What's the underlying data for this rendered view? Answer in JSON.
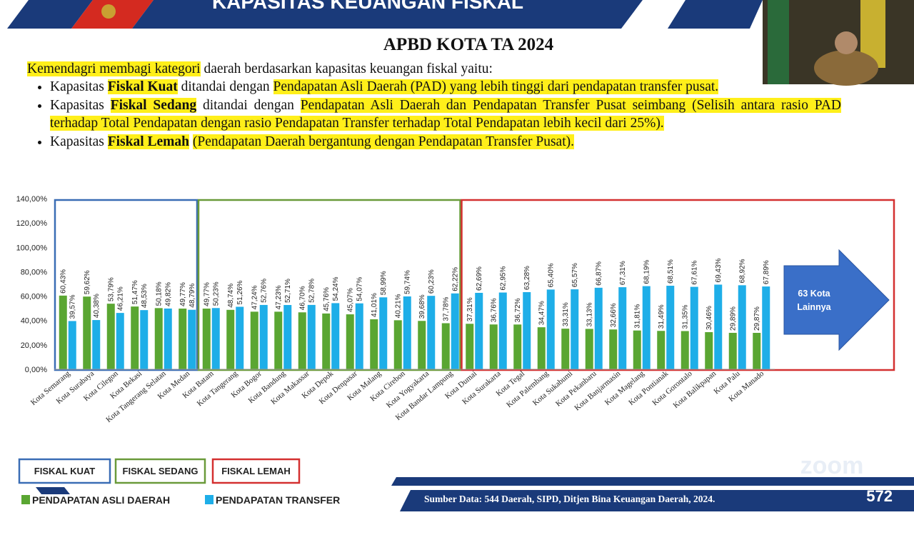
{
  "header": {
    "title": "KAPASITAS KEUANGAN FISKAL",
    "subtitle": "APBD KOTA TA 2024"
  },
  "intro": {
    "lead": "Kemendagri membagi kategori",
    "rest": " daerah berdasarkan kapasitas keuangan fiskal yaitu:"
  },
  "bullets": [
    {
      "prefix": "Kapasitas ",
      "term": "Fiskal Kuat",
      "middle": " ditandai dengan ",
      "desc": "Pendapatan Asli Daerah (PAD) yang lebih tinggi dari pendapatan transfer pusat."
    },
    {
      "prefix": "Kapasitas ",
      "term": "Fiskal Sedang",
      "middle": " ditandai dengan ",
      "desc": "Pendapatan Asli Daerah dan Pendapatan Transfer Pusat seimbang (Selisih antara rasio PAD terhadap Total Pendapatan dengan rasio Pendapatan Transfer terhadap Total Pendapatan lebih kecil dari 25%)."
    },
    {
      "prefix": "Kapasitas ",
      "term": "Fiskal Lemah",
      "middle": " ",
      "desc": "(Pendapatan Daerah bergantung dengan Pendapatan Transfer Pusat)."
    }
  ],
  "chart_data": {
    "type": "bar",
    "categories": [
      "Kota Semarang",
      "Kota Surabaya",
      "Kota Cilegon",
      "Kota Bekasi",
      "Kota Tangerang Selatan",
      "Kota Medan",
      "Kota Batam",
      "Kota Tangerang",
      "Kota Bogor",
      "Kota Bandung",
      "Kota Makassar",
      "Kota Depok",
      "Kota Denpasar",
      "Kota Malang",
      "Kota Cirebon",
      "Kota Yogyakarta",
      "Kota Bandar Lampung",
      "Kota Dumai",
      "Kota Surakarta",
      "Kota Tegal",
      "Kota Palembang",
      "Kota Sukabumi",
      "Kota Pekanbaru",
      "Kota Banjarmasin",
      "Kota Magelang",
      "Kota Pontianak",
      "Kota Gorontalo",
      "Kota Balikpapan",
      "Kota Palu",
      "Kota Manado"
    ],
    "series": [
      {
        "name": "PENDAPATAN ASLI DAERAH",
        "color": "#5aa632",
        "values": [
          60.43,
          59.62,
          53.79,
          51.47,
          50.18,
          49.77,
          49.77,
          48.74,
          47.24,
          47.23,
          46.7,
          45.76,
          45.07,
          41.01,
          40.21,
          39.68,
          37.78,
          37.31,
          36.76,
          36.72,
          34.47,
          33.31,
          33.13,
          32.66,
          31.81,
          31.49,
          31.35,
          30.46,
          29.89,
          29.87
        ],
        "value_labels": [
          "60,43%",
          "59,62%",
          "53,79%",
          "51,47%",
          "50,18%",
          "49,77%",
          "49,77%",
          "48,74%",
          "47,24%",
          "47,23%",
          "46,70%",
          "45,76%",
          "45,07%",
          "41,01%",
          "40,21%",
          "39,68%",
          "37,78%",
          "37,31%",
          "36,76%",
          "36,72%",
          "34,47%",
          "33,31%",
          "33,13%",
          "32,66%",
          "31,81%",
          "31,49%",
          "31,35%",
          "30,46%",
          "29,89%",
          "29,87%"
        ]
      },
      {
        "name": "PENDAPATAN TRANSFER",
        "color": "#1eaee8",
        "values": [
          39.57,
          40.38,
          46.21,
          48.53,
          49.82,
          48.79,
          50.23,
          51.26,
          52.76,
          52.71,
          52.78,
          54.24,
          54.07,
          58.99,
          59.74,
          60.23,
          62.22,
          62.69,
          62.95,
          63.28,
          65.4,
          65.57,
          66.87,
          67.31,
          68.19,
          68.51,
          67.61,
          69.43,
          68.92,
          67.89
        ],
        "value_labels": [
          "39,57%",
          "40,38%",
          "46,21%",
          "48,53%",
          "49,82%",
          "48,79%",
          "50,23%",
          "51,26%",
          "52,76%",
          "52,71%",
          "52,78%",
          "54,24%",
          "54,07%",
          "58,99%",
          "59,74%",
          "60,23%",
          "62,22%",
          "62,69%",
          "62,95%",
          "63,28%",
          "65,40%",
          "65,57%",
          "66,87%",
          "67,31%",
          "68,19%",
          "68,51%",
          "67,61%",
          "69,43%",
          "68,92%",
          "67,89%"
        ]
      }
    ],
    "ylim": [
      0,
      140
    ],
    "yticks": [
      {
        "value": 0,
        "label": "0,00%"
      },
      {
        "value": 20,
        "label": "20,00%"
      },
      {
        "value": 40,
        "label": "40,00%"
      },
      {
        "value": 60,
        "label": "60,00%"
      },
      {
        "value": 80,
        "label": "80,00%"
      },
      {
        "value": 100,
        "label": "100,00%"
      },
      {
        "value": 120,
        "label": "120,00%"
      },
      {
        "value": 140,
        "label": "140,00%"
      }
    ],
    "groups": [
      {
        "label": "FISKAL KUAT",
        "color": "#3a6db5"
      },
      {
        "label": "FISKAL SEDANG",
        "color": "#6a9a3a"
      },
      {
        "label": "FISKAL LEMAH",
        "color": "#d43030"
      }
    ],
    "arrow_label": "63 Kota Lainnya"
  },
  "footer": {
    "source": "Sumber Data: 544 Daerah, SIPD, Ditjen Bina Keuangan Daerah, 2024.",
    "page": "572",
    "watermark": "zoom"
  }
}
